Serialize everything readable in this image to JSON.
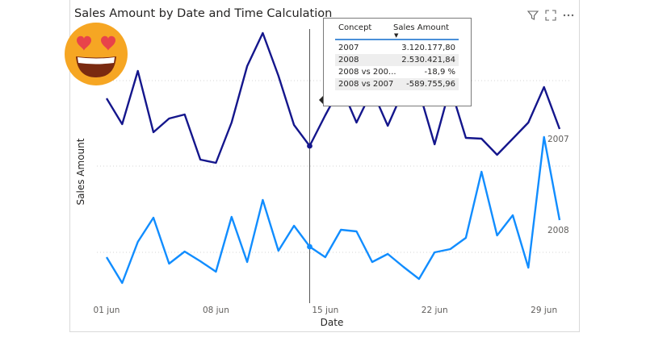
{
  "visual": {
    "title": "Sales Amount by Date and Time Calculation",
    "header_icons": [
      "filter-icon",
      "focus-mode-icon",
      "more-options-icon"
    ]
  },
  "tooltip": {
    "headers": {
      "concept": "Concept",
      "value": "Sales Amount"
    },
    "rows": [
      {
        "concept": "2007",
        "value": "3.120.177,80"
      },
      {
        "concept": "2008",
        "value": "2.530.421,84"
      },
      {
        "concept": "2008 vs 200...",
        "value": "-18,9 %"
      },
      {
        "concept": "2008 vs 2007",
        "value": "-589.755,96"
      }
    ]
  },
  "decoration": {
    "emoji": "heart-eyes-emoji"
  },
  "colors": {
    "series_2007": "#14168c",
    "series_2008": "#118dff",
    "gridline": "#d6d6d6",
    "hover_line": "#555555",
    "emoji_face": "#f6a623",
    "emoji_hearts": "#e8434a"
  },
  "chart_data": {
    "type": "line",
    "title": "Sales Amount by Date and Time Calculation",
    "xlabel": "Date",
    "ylabel": "Sales Amount",
    "x": [
      "01 jun",
      "02 jun",
      "03 jun",
      "04 jun",
      "05 jun",
      "06 jun",
      "07 jun",
      "08 jun",
      "09 jun",
      "10 jun",
      "11 jun",
      "12 jun",
      "13 jun",
      "14 jun",
      "15 jun",
      "16 jun",
      "17 jun",
      "18 jun",
      "19 jun",
      "20 jun",
      "21 jun",
      "22 jun",
      "23 jun",
      "24 jun",
      "25 jun",
      "26 jun",
      "27 jun",
      "28 jun",
      "29 jun",
      "30 jun"
    ],
    "x_tick_labels": [
      "01 jun",
      "08 jun",
      "15 jun",
      "22 jun",
      "29 jun"
    ],
    "y_axis_values_shown": false,
    "gridlines": true,
    "hover_category": "14 jun",
    "series": [
      {
        "name": "2007",
        "values": [
          122,
          154,
          88,
          164,
          147,
          142,
          198,
          202,
          152,
          82,
          41,
          94,
          155,
          181,
          143,
          107,
          152,
          112,
          156,
          112,
          113,
          179,
          108,
          171,
          172,
          192,
          172,
          152,
          108,
          160
        ]
      },
      {
        "name": "2008",
        "values": [
          319,
          351,
          300,
          270,
          327,
          312,
          324,
          337,
          269,
          325,
          248,
          311,
          280,
          306,
          319,
          285,
          287,
          325,
          315,
          331,
          346,
          313,
          309,
          295,
          213,
          292,
          267,
          332,
          170,
          273
        ]
      }
    ],
    "series_end_labels": [
      "2007",
      "2008"
    ]
  }
}
